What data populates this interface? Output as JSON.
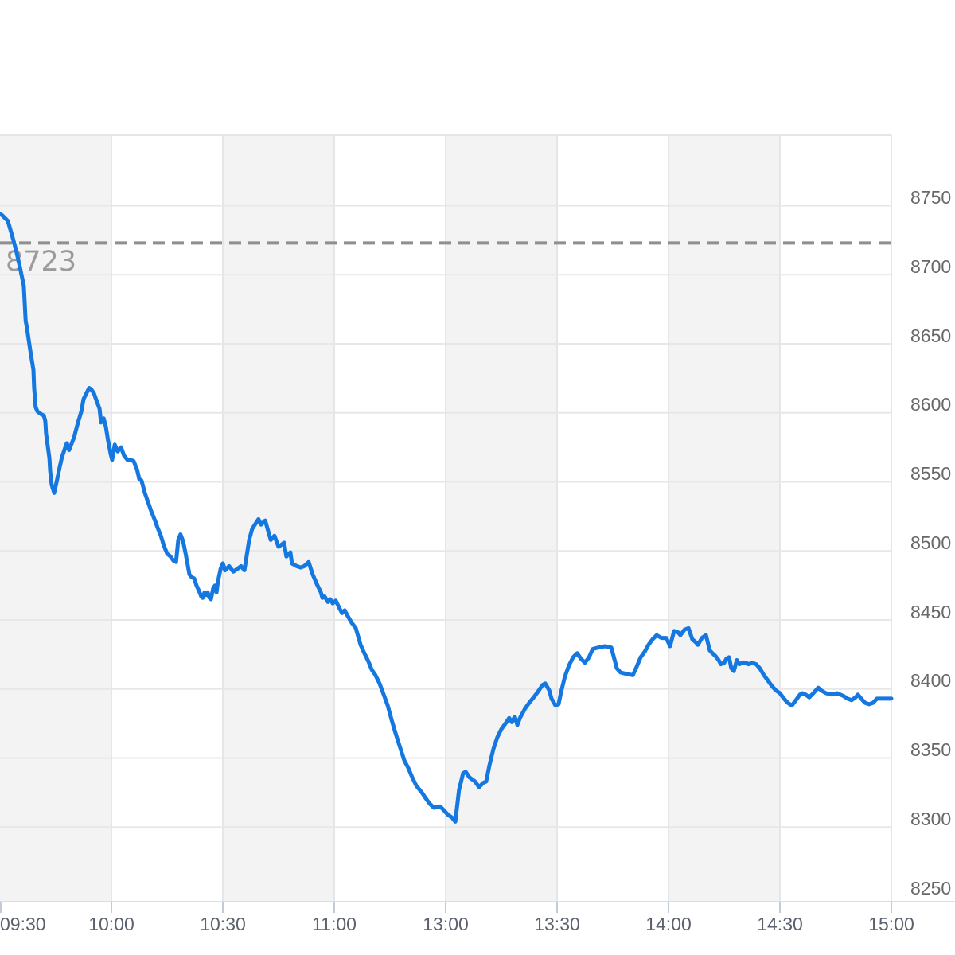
{
  "chart_data": {
    "type": "line",
    "description": "Intraday stock index price line chart, session 09:30-11:30 and 13:00-15:00 (lunch break collapsed)",
    "x_axis": {
      "labels": [
        "09:30",
        "10:00",
        "10:30",
        "11:00",
        "13:00",
        "13:30",
        "14:00",
        "14:30",
        "15:00"
      ],
      "ticks_minutes": [
        0,
        30,
        60,
        90,
        120,
        150,
        180,
        210,
        240
      ],
      "total_minutes": 240
    },
    "y_axis": {
      "tick_labels": [
        "8750",
        "8700",
        "8650",
        "8600",
        "8550",
        "8500",
        "8450",
        "8400",
        "8350",
        "8300",
        "8250"
      ],
      "tick_values": [
        8750,
        8700,
        8650,
        8600,
        8550,
        8500,
        8450,
        8400,
        8350,
        8300,
        8250
      ],
      "gridline_values": [
        8750,
        8700,
        8650,
        8600,
        8550,
        8500,
        8450,
        8400,
        8350,
        8300
      ],
      "ylim": [
        8246,
        8801
      ],
      "position": "right"
    },
    "previous_close": {
      "value": 8723,
      "label": "8723"
    },
    "shaded_bands": {
      "intervals_minutes": [
        [
          0,
          30
        ],
        [
          60,
          90
        ],
        [
          120,
          150
        ],
        [
          180,
          210
        ]
      ]
    },
    "series": [
      {
        "name": "price",
        "color": "#1577e0",
        "points": [
          [
            0,
            8744
          ],
          [
            0.6,
            8743
          ],
          [
            2.1,
            8739
          ],
          [
            3.2,
            8729
          ],
          [
            4.3,
            8718
          ],
          [
            5.4,
            8705
          ],
          [
            6.4,
            8692
          ],
          [
            6.9,
            8667
          ],
          [
            7.5,
            8657
          ],
          [
            8.1,
            8646
          ],
          [
            9,
            8631
          ],
          [
            9.2,
            8618
          ],
          [
            9.6,
            8604
          ],
          [
            10.1,
            8601
          ],
          [
            11.1,
            8599
          ],
          [
            11.8,
            8598
          ],
          [
            12.2,
            8594
          ],
          [
            12.4,
            8585
          ],
          [
            12.9,
            8575
          ],
          [
            13.3,
            8567
          ],
          [
            13.5,
            8558
          ],
          [
            13.9,
            8548
          ],
          [
            14.6,
            8542
          ],
          [
            15.4,
            8552
          ],
          [
            16.1,
            8561
          ],
          [
            16.7,
            8568
          ],
          [
            17.6,
            8575
          ],
          [
            18,
            8578
          ],
          [
            18.6,
            8573
          ],
          [
            19.9,
            8582
          ],
          [
            21,
            8593
          ],
          [
            21.9,
            8601
          ],
          [
            22.5,
            8610
          ],
          [
            24,
            8618
          ],
          [
            24.6,
            8617
          ],
          [
            25.3,
            8614
          ],
          [
            26.1,
            8608
          ],
          [
            26.8,
            8603
          ],
          [
            27.2,
            8593
          ],
          [
            27.9,
            8596
          ],
          [
            28.5,
            8590
          ],
          [
            29.1,
            8580
          ],
          [
            29.8,
            8570
          ],
          [
            30.2,
            8566
          ],
          [
            30.9,
            8577
          ],
          [
            31.7,
            8572
          ],
          [
            32.6,
            8575
          ],
          [
            33.4,
            8569
          ],
          [
            34.3,
            8566
          ],
          [
            35.1,
            8566
          ],
          [
            36,
            8565
          ],
          [
            36.9,
            8559
          ],
          [
            37.5,
            8552
          ],
          [
            38.1,
            8551
          ],
          [
            39,
            8542
          ],
          [
            39.9,
            8535
          ],
          [
            40.7,
            8529
          ],
          [
            41.6,
            8523
          ],
          [
            42.4,
            8517
          ],
          [
            43.3,
            8511
          ],
          [
            44.1,
            8504
          ],
          [
            45,
            8498
          ],
          [
            45.9,
            8496
          ],
          [
            46.7,
            8493
          ],
          [
            47.4,
            8492
          ],
          [
            48,
            8508
          ],
          [
            48.6,
            8512
          ],
          [
            49.3,
            8507
          ],
          [
            49.9,
            8499
          ],
          [
            50.4,
            8492
          ],
          [
            51,
            8483
          ],
          [
            51.6,
            8481
          ],
          [
            52.3,
            8480
          ],
          [
            52.9,
            8475
          ],
          [
            53.6,
            8471
          ],
          [
            54.2,
            8467
          ],
          [
            54.6,
            8466
          ],
          [
            55.1,
            8470
          ],
          [
            55.5,
            8468
          ],
          [
            55.9,
            8470
          ],
          [
            56.4,
            8466
          ],
          [
            56.8,
            8465
          ],
          [
            57.4,
            8473
          ],
          [
            57.9,
            8475
          ],
          [
            58.3,
            8470
          ],
          [
            58.7,
            8478
          ],
          [
            59.4,
            8487
          ],
          [
            60,
            8491
          ],
          [
            60.6,
            8486
          ],
          [
            61.7,
            8489
          ],
          [
            62.8,
            8485
          ],
          [
            63.9,
            8487
          ],
          [
            64.9,
            8489
          ],
          [
            65.8,
            8486
          ],
          [
            67.1,
            8508
          ],
          [
            67.9,
            8516
          ],
          [
            69.6,
            8523
          ],
          [
            70.3,
            8519
          ],
          [
            71.4,
            8522
          ],
          [
            72.9,
            8508
          ],
          [
            73.9,
            8511
          ],
          [
            75,
            8503
          ],
          [
            76.5,
            8506
          ],
          [
            77.1,
            8496
          ],
          [
            78.2,
            8499
          ],
          [
            78.6,
            8491
          ],
          [
            79.9,
            8489
          ],
          [
            81,
            8488
          ],
          [
            81.9,
            8489
          ],
          [
            83.1,
            8492
          ],
          [
            84.2,
            8483
          ],
          [
            85.3,
            8476
          ],
          [
            86.4,
            8470
          ],
          [
            86.8,
            8466
          ],
          [
            87.4,
            8467
          ],
          [
            88.3,
            8463
          ],
          [
            88.9,
            8465
          ],
          [
            89.6,
            8462
          ],
          [
            90.4,
            8464
          ],
          [
            91.5,
            8458
          ],
          [
            92.1,
            8455
          ],
          [
            92.8,
            8457
          ],
          [
            93.6,
            8453
          ],
          [
            94.7,
            8448
          ],
          [
            95.8,
            8444
          ],
          [
            97.1,
            8432
          ],
          [
            97.9,
            8427
          ],
          [
            99.2,
            8420
          ],
          [
            100.1,
            8414
          ],
          [
            101.1,
            8410
          ],
          [
            102.2,
            8404
          ],
          [
            102.9,
            8399
          ],
          [
            104.4,
            8388
          ],
          [
            105.4,
            8378
          ],
          [
            106.5,
            8368
          ],
          [
            107.8,
            8357
          ],
          [
            108.9,
            8348
          ],
          [
            109.9,
            8343
          ],
          [
            111,
            8336
          ],
          [
            112.1,
            8330
          ],
          [
            113.6,
            8325
          ],
          [
            114.6,
            8321
          ],
          [
            115.7,
            8317
          ],
          [
            116.8,
            8314
          ],
          [
            118.5,
            8315
          ],
          [
            119.6,
            8312
          ],
          [
            120.6,
            8309
          ],
          [
            121.7,
            8307
          ],
          [
            122.6,
            8304
          ],
          [
            123.6,
            8327
          ],
          [
            124.7,
            8339
          ],
          [
            125.4,
            8340
          ],
          [
            126.4,
            8336
          ],
          [
            127.9,
            8333
          ],
          [
            129,
            8329
          ],
          [
            130.1,
            8332
          ],
          [
            130.9,
            8333
          ],
          [
            131.8,
            8345
          ],
          [
            132.9,
            8357
          ],
          [
            133.9,
            8365
          ],
          [
            135,
            8371
          ],
          [
            136.1,
            8375
          ],
          [
            137.1,
            8379
          ],
          [
            137.8,
            8376
          ],
          [
            138.6,
            8380
          ],
          [
            139.3,
            8374
          ],
          [
            140,
            8379
          ],
          [
            141.4,
            8386
          ],
          [
            142.5,
            8390
          ],
          [
            144,
            8395
          ],
          [
            145.1,
            8399
          ],
          [
            146.1,
            8403
          ],
          [
            146.8,
            8404
          ],
          [
            147.9,
            8399
          ],
          [
            148.5,
            8393
          ],
          [
            149.6,
            8388
          ],
          [
            150.4,
            8389
          ],
          [
            151.1,
            8398
          ],
          [
            152.1,
            8409
          ],
          [
            153.2,
            8417
          ],
          [
            154.3,
            8423
          ],
          [
            155.4,
            8426
          ],
          [
            156.4,
            8422
          ],
          [
            157.5,
            8419
          ],
          [
            158.6,
            8423
          ],
          [
            159.6,
            8429
          ],
          [
            161.1,
            8430
          ],
          [
            162.9,
            8431
          ],
          [
            164.6,
            8430
          ],
          [
            166.1,
            8415
          ],
          [
            167.1,
            8412
          ],
          [
            168.6,
            8411
          ],
          [
            170.4,
            8410
          ],
          [
            171.4,
            8416
          ],
          [
            172.5,
            8423
          ],
          [
            173.6,
            8427
          ],
          [
            174.6,
            8432
          ],
          [
            175.7,
            8436
          ],
          [
            176.8,
            8439
          ],
          [
            178.1,
            8437
          ],
          [
            179.4,
            8437
          ],
          [
            180.4,
            8431
          ],
          [
            181.5,
            8442
          ],
          [
            182.6,
            8441
          ],
          [
            183.2,
            8439
          ],
          [
            184.3,
            8443
          ],
          [
            185.4,
            8444
          ],
          [
            186.4,
            8436
          ],
          [
            187.3,
            8434
          ],
          [
            187.9,
            8432
          ],
          [
            189,
            8437
          ],
          [
            190.1,
            8439
          ],
          [
            191.1,
            8428
          ],
          [
            191.8,
            8426
          ],
          [
            192.6,
            8424
          ],
          [
            193.5,
            8421
          ],
          [
            194.1,
            8418
          ],
          [
            195,
            8419
          ],
          [
            195.6,
            8422
          ],
          [
            196.3,
            8423
          ],
          [
            196.9,
            8415
          ],
          [
            197.6,
            8413
          ],
          [
            198.4,
            8421
          ],
          [
            199.1,
            8418
          ],
          [
            199.9,
            8419
          ],
          [
            200.8,
            8419
          ],
          [
            201.6,
            8418
          ],
          [
            202.5,
            8419
          ],
          [
            203.6,
            8418
          ],
          [
            204.6,
            8415
          ],
          [
            205.7,
            8410
          ],
          [
            206.8,
            8406
          ],
          [
            207.9,
            8402
          ],
          [
            208.9,
            8399
          ],
          [
            210,
            8397
          ],
          [
            211.1,
            8393
          ],
          [
            212.1,
            8390
          ],
          [
            213.2,
            8388
          ],
          [
            214.3,
            8392
          ],
          [
            215.4,
            8396
          ],
          [
            216,
            8397
          ],
          [
            216.9,
            8396
          ],
          [
            217.9,
            8394
          ],
          [
            219,
            8397
          ],
          [
            220.3,
            8401
          ],
          [
            221.1,
            8399
          ],
          [
            222.4,
            8397
          ],
          [
            223.9,
            8396
          ],
          [
            225.4,
            8397
          ],
          [
            227.1,
            8395
          ],
          [
            228.2,
            8393
          ],
          [
            229.3,
            8392
          ],
          [
            230.4,
            8394
          ],
          [
            231,
            8396
          ],
          [
            231.9,
            8393
          ],
          [
            232.9,
            8390
          ],
          [
            234,
            8389
          ],
          [
            235.1,
            8390
          ],
          [
            236.1,
            8393
          ],
          [
            237.9,
            8393
          ],
          [
            240,
            8393
          ]
        ]
      }
    ],
    "colors": {
      "background": "#ffffff",
      "band": "#f3f3f3",
      "grid": "#e7e7e7",
      "vertical_grid": "#e4e6e9",
      "plot_border_top": "#e5e5e5",
      "axis_line": "#d9dee3",
      "tick": "#c2cbd8",
      "x_label": "#5b626e",
      "y_label": "#686868",
      "prev_close_line": "#8f8f8f",
      "prev_close_label": "#9b9b9b",
      "line": "#1577e0"
    },
    "legend": null,
    "grid": true
  }
}
